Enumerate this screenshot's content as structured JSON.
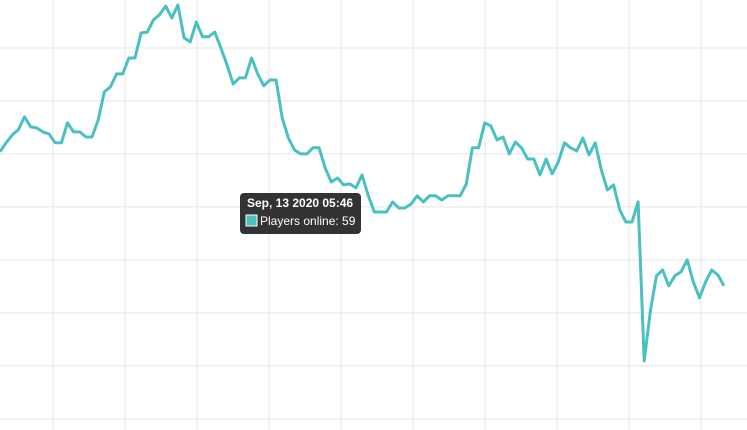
{
  "chart_data": {
    "type": "line",
    "series": [
      {
        "name": "Players online",
        "color": "#4bc0c0",
        "values": [
          60.08,
          60.42,
          60.72,
          60.91,
          61.4,
          61.02,
          60.98,
          60.83,
          60.75,
          60.42,
          60.42,
          61.17,
          60.83,
          60.83,
          60.64,
          60.64,
          61.28,
          62.34,
          62.53,
          63.02,
          63.02,
          63.62,
          63.62,
          64.57,
          64.6,
          65.06,
          65.25,
          65.58,
          65.13,
          65.62,
          64.38,
          64.23,
          64.98,
          64.42,
          64.42,
          64.6,
          64.0,
          63.36,
          62.64,
          62.87,
          62.87,
          63.62,
          63.02,
          62.57,
          62.79,
          62.79,
          61.36,
          60.6,
          60.15,
          60,
          60,
          60.23,
          60.23,
          59.47,
          58.94,
          59.09,
          58.83,
          58.87,
          58.72,
          59.21,
          58.45,
          57.81,
          57.81,
          57.81,
          58.19,
          57.96,
          57.96,
          58.11,
          58.42,
          58.19,
          58.42,
          58.42,
          58.26,
          58.42,
          58.42,
          58.42,
          58.87,
          60.23,
          60.23,
          61.17,
          61.06,
          60.53,
          60.64,
          60,
          60.45,
          60.23,
          59.81,
          59.81,
          59.21,
          59.81,
          59.25,
          59.7,
          60.42,
          60.23,
          60.11,
          60.6,
          59.96,
          60.42,
          59.4,
          58.64,
          58.83,
          57.89,
          57.43,
          57.43,
          58.19,
          52.19,
          54.08,
          55.4,
          55.62,
          55.02,
          55.4,
          55.55,
          56.0,
          55.17,
          54.57,
          55.17,
          55.62,
          55.43,
          55.02
        ]
      }
    ],
    "ylim": [
      49.58,
      65.81
    ],
    "yticks": [
      50,
      52,
      54,
      56,
      58,
      60,
      62,
      64
    ],
    "grid": true,
    "tooltip": {
      "title": "Sep, 13 2020 05:46",
      "text": "Players online: 59"
    }
  }
}
